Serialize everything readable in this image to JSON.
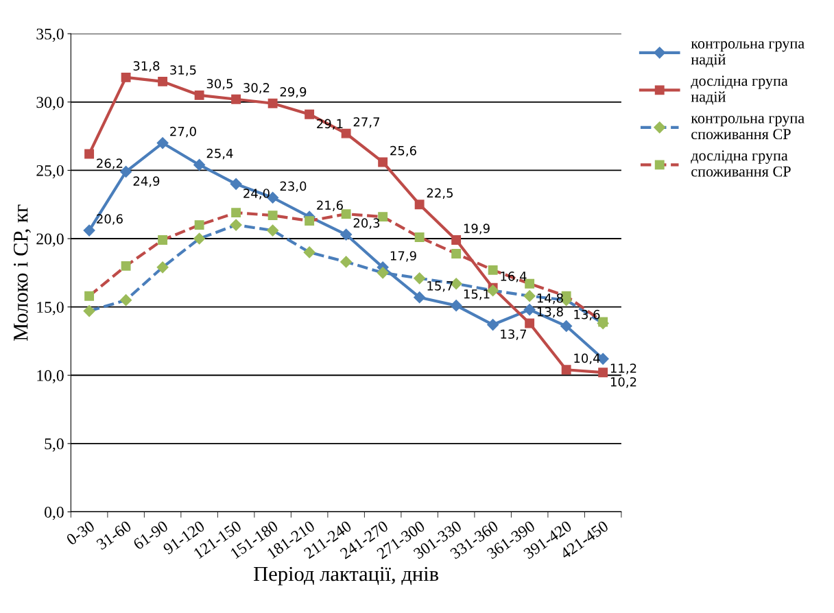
{
  "chart_data": {
    "type": "line",
    "xlabel": "Період лактації, днів",
    "ylabel": "Молоко і СР, кг",
    "categories": [
      "0-30",
      "31-60",
      "61-90",
      "91-120",
      "121-150",
      "151-180",
      "181-210",
      "211-240",
      "241-270",
      "271-300",
      "301-330",
      "331-360",
      "361-390",
      "391-420",
      "421-450"
    ],
    "series": [
      {
        "name": "контрольна група надій",
        "color": "#4a7ebb",
        "marker": "diamond",
        "line_style": "solid",
        "values": [
          20.6,
          24.9,
          27.0,
          25.4,
          24.0,
          23.0,
          21.6,
          20.3,
          17.9,
          15.7,
          15.1,
          13.7,
          14.8,
          13.6,
          11.2
        ],
        "value_labels": [
          "20,6",
          "24,9",
          "27,0",
          "25,4",
          "24,0",
          "23,0",
          "21,6",
          "20,3",
          "17,9",
          "15,7",
          "15,1",
          "13,7",
          "14,8",
          "13,6",
          "11,2"
        ]
      },
      {
        "name": "дослідна група надій",
        "color": "#be4b48",
        "marker": "square",
        "line_style": "solid",
        "values": [
          26.2,
          31.8,
          31.5,
          30.5,
          30.2,
          29.9,
          29.1,
          27.7,
          25.6,
          22.5,
          19.9,
          16.4,
          13.8,
          10.4,
          10.2
        ],
        "value_labels": [
          "26,2",
          "31,8",
          "31,5",
          "30,5",
          "30,2",
          "29,9",
          "29,1",
          "27,7",
          "25,6",
          "22,5",
          "19,9",
          "16,4",
          "13,8",
          "10,4",
          "10,2"
        ]
      },
      {
        "name": "контрольна група споживання СР",
        "color": "#4a7ebb",
        "colors": [
          "#9bbb59",
          "#9bbb59",
          "#9bbb59",
          "#9bbb59",
          "#9bbb59",
          "#9bbb59",
          "#9bbb59",
          "#9bbb59",
          "#9bbb59",
          "#9bbb59",
          "#9bbb59",
          "#9bbb59",
          "#9bbb59",
          "#9bbb59",
          "#9bbb59"
        ],
        "marker": "diamond",
        "line_style": "dashed",
        "values": [
          14.7,
          15.5,
          17.9,
          20.0,
          21.0,
          20.6,
          19.0,
          18.3,
          17.5,
          17.1,
          16.7,
          16.2,
          15.8,
          15.5,
          13.8
        ]
      },
      {
        "name": "дослідна група споживання СР",
        "color": "#be4b48",
        "colors": [
          "#9bbb59",
          "#9bbb59",
          "#9bbb59",
          "#9bbb59",
          "#9bbb59",
          "#9bbb59",
          "#9bbb59",
          "#9bbb59",
          "#9bbb59",
          "#9bbb59",
          "#9bbb59",
          "#9bbb59",
          "#9bbb59",
          "#9bbb59",
          "#9bbb59"
        ],
        "marker": "square",
        "line_style": "dashed",
        "values": [
          15.8,
          18.0,
          19.9,
          21.0,
          21.9,
          21.7,
          21.3,
          21.8,
          21.6,
          20.1,
          18.9,
          17.7,
          16.7,
          15.8,
          13.9
        ]
      }
    ],
    "ylim": [
      0,
      35
    ],
    "yticks": [
      {
        "value": 0,
        "label": "0,0"
      },
      {
        "value": 5,
        "label": "5,0"
      },
      {
        "value": 10,
        "label": "10,0"
      },
      {
        "value": 15,
        "label": "15,0"
      },
      {
        "value": 20,
        "label": "20,0"
      },
      {
        "value": 25,
        "label": "25,0"
      },
      {
        "value": 30,
        "label": "30,0"
      },
      {
        "value": 35,
        "label": "35,0"
      }
    ],
    "grid": "y",
    "legend": "top right"
  }
}
